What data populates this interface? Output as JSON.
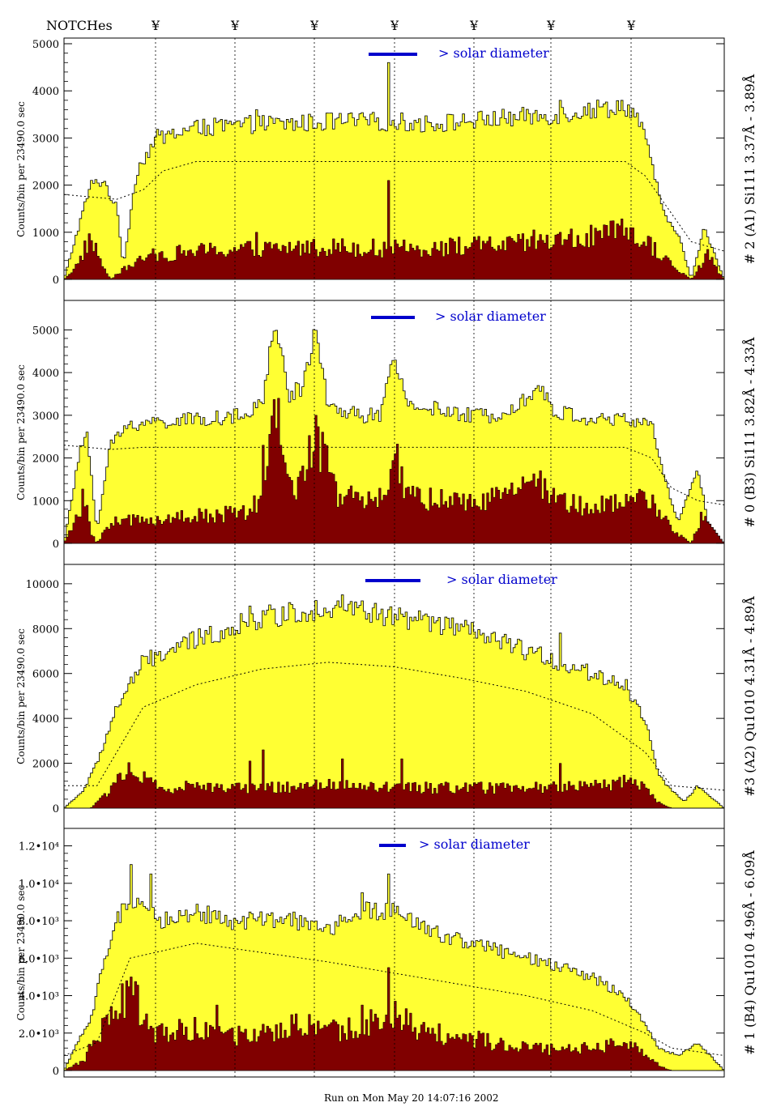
{
  "header": {
    "notches_label": "NOTCHes",
    "notch_symbol": "¥"
  },
  "footer": {
    "run_text": "Run on Mon May 20 14:07:16 2002"
  },
  "colors": {
    "total": "#ffff33",
    "line": "#800000",
    "frame": "#000000",
    "solar_bar": "#0000cc"
  },
  "chart_data": [
    {
      "type": "area",
      "panel_label": "# 2 (A1) Si111  3.37Å - 3.89Å",
      "ylabel": "Counts/bin per  23490.0 sec",
      "ylim": [
        0,
        5000
      ],
      "yticks": [
        0,
        1000,
        2000,
        3000,
        4000,
        5000
      ],
      "ytick_labels": [
        "0",
        "1000",
        "2000",
        "3000",
        "4000",
        "5000"
      ],
      "solar_label": "> solar diameter",
      "total_profile": [
        [
          0,
          0
        ],
        [
          0.04,
          2000
        ],
        [
          0.06,
          2100
        ],
        [
          0.08,
          1500
        ],
        [
          0.09,
          300
        ],
        [
          0.11,
          2300
        ],
        [
          0.14,
          3000
        ],
        [
          0.2,
          3200
        ],
        [
          0.25,
          3250
        ],
        [
          0.3,
          3300
        ],
        [
          0.35,
          3300
        ],
        [
          0.4,
          3350
        ],
        [
          0.45,
          3350
        ],
        [
          0.5,
          3350
        ],
        [
          0.55,
          3300
        ],
        [
          0.6,
          3350
        ],
        [
          0.65,
          3400
        ],
        [
          0.7,
          3450
        ],
        [
          0.75,
          3500
        ],
        [
          0.8,
          3600
        ],
        [
          0.85,
          3700
        ],
        [
          0.87,
          3400
        ],
        [
          0.89,
          2500
        ],
        [
          0.91,
          1300
        ],
        [
          0.93,
          1000
        ],
        [
          0.95,
          0
        ],
        [
          0.97,
          1100
        ],
        [
          1,
          0
        ]
      ],
      "line_profile": [
        [
          0,
          0
        ],
        [
          0.02,
          300
        ],
        [
          0.04,
          900
        ],
        [
          0.055,
          400
        ],
        [
          0.07,
          0
        ],
        [
          0.08,
          100
        ],
        [
          0.1,
          300
        ],
        [
          0.13,
          500
        ],
        [
          0.2,
          600
        ],
        [
          0.3,
          650
        ],
        [
          0.4,
          700
        ],
        [
          0.5,
          650
        ],
        [
          0.6,
          700
        ],
        [
          0.7,
          750
        ],
        [
          0.8,
          900
        ],
        [
          0.85,
          1000
        ],
        [
          0.88,
          800
        ],
        [
          0.9,
          600
        ],
        [
          0.92,
          300
        ],
        [
          0.95,
          0
        ],
        [
          0.975,
          500
        ],
        [
          1,
          0
        ]
      ],
      "total_spikes": [
        [
          0.49,
          4600
        ],
        [
          0.29,
          3600
        ],
        [
          0.75,
          3800
        ],
        [
          0.21,
          3400
        ]
      ],
      "line_spikes": [
        [
          0.49,
          2100
        ],
        [
          0.29,
          1000
        ],
        [
          0.71,
          1050
        ],
        [
          0.75,
          1000
        ]
      ],
      "model_curve": [
        [
          0,
          1800
        ],
        [
          0.08,
          1700
        ],
        [
          0.12,
          1900
        ],
        [
          0.15,
          2300
        ],
        [
          0.2,
          2500
        ],
        [
          0.5,
          2500
        ],
        [
          0.85,
          2500
        ],
        [
          0.88,
          2200
        ],
        [
          0.91,
          1600
        ],
        [
          0.95,
          800
        ],
        [
          1,
          600
        ]
      ]
    },
    {
      "type": "area",
      "panel_label": "# 0 (B3) Si111  3.82Å - 4.33Å",
      "ylabel": "Counts/bin per  23490.0 sec",
      "ylim": [
        0,
        5500
      ],
      "yticks": [
        0,
        1000,
        2000,
        3000,
        4000,
        5000
      ],
      "ytick_labels": [
        "0",
        "1000",
        "2000",
        "3000",
        "4000",
        "5000"
      ],
      "solar_label": "> solar diameter",
      "total_profile": [
        [
          0,
          0
        ],
        [
          0.025,
          2200
        ],
        [
          0.035,
          2600
        ],
        [
          0.05,
          300
        ],
        [
          0.07,
          2300
        ],
        [
          0.1,
          2800
        ],
        [
          0.2,
          2900
        ],
        [
          0.28,
          3000
        ],
        [
          0.3,
          3300
        ],
        [
          0.32,
          5200
        ],
        [
          0.34,
          3500
        ],
        [
          0.36,
          3600
        ],
        [
          0.38,
          5000
        ],
        [
          0.4,
          3200
        ],
        [
          0.45,
          3000
        ],
        [
          0.48,
          3000
        ],
        [
          0.5,
          4300
        ],
        [
          0.52,
          3300
        ],
        [
          0.6,
          3000
        ],
        [
          0.65,
          3000
        ],
        [
          0.7,
          3400
        ],
        [
          0.72,
          3700
        ],
        [
          0.74,
          3100
        ],
        [
          0.8,
          2900
        ],
        [
          0.85,
          2900
        ],
        [
          0.89,
          2800
        ],
        [
          0.91,
          1500
        ],
        [
          0.93,
          500
        ],
        [
          0.96,
          1800
        ],
        [
          0.975,
          500
        ],
        [
          1,
          0
        ]
      ],
      "line_profile": [
        [
          0,
          0
        ],
        [
          0.02,
          600
        ],
        [
          0.03,
          1100
        ],
        [
          0.04,
          300
        ],
        [
          0.05,
          0
        ],
        [
          0.07,
          500
        ],
        [
          0.2,
          650
        ],
        [
          0.28,
          700
        ],
        [
          0.3,
          1100
        ],
        [
          0.32,
          3000
        ],
        [
          0.34,
          1500
        ],
        [
          0.36,
          1400
        ],
        [
          0.38,
          2800
        ],
        [
          0.41,
          1200
        ],
        [
          0.45,
          1000
        ],
        [
          0.48,
          1000
        ],
        [
          0.5,
          2000
        ],
        [
          0.52,
          1200
        ],
        [
          0.6,
          900
        ],
        [
          0.68,
          1100
        ],
        [
          0.72,
          1400
        ],
        [
          0.75,
          1000
        ],
        [
          0.8,
          850
        ],
        [
          0.85,
          900
        ],
        [
          0.89,
          1100
        ],
        [
          0.92,
          300
        ],
        [
          0.95,
          0
        ],
        [
          0.97,
          800
        ],
        [
          1,
          0
        ]
      ],
      "total_spikes": [],
      "line_spikes": [
        [
          0.3,
          2300
        ],
        [
          0.5,
          2100
        ]
      ],
      "model_curve": [
        [
          0,
          2300
        ],
        [
          0.07,
          2200
        ],
        [
          0.12,
          2250
        ],
        [
          0.5,
          2250
        ],
        [
          0.85,
          2250
        ],
        [
          0.89,
          2000
        ],
        [
          0.92,
          1300
        ],
        [
          0.96,
          1000
        ],
        [
          1,
          900
        ]
      ]
    },
    {
      "type": "area",
      "panel_label": "#3 (A2) Qu1010  4.31Å - 4.89Å",
      "ylabel": "Counts/bin per  23490.0 sec",
      "ylim": [
        0,
        10500
      ],
      "yticks": [
        0,
        2000,
        4000,
        6000,
        8000,
        10000
      ],
      "ytick_labels": [
        "0",
        "2000",
        "4000",
        "6000",
        "8000",
        "10000"
      ],
      "solar_label": "> solar diameter",
      "total_profile": [
        [
          0,
          0
        ],
        [
          0.03,
          800
        ],
        [
          0.05,
          2000
        ],
        [
          0.08,
          4500
        ],
        [
          0.12,
          6500
        ],
        [
          0.2,
          7500
        ],
        [
          0.25,
          8000
        ],
        [
          0.3,
          8500
        ],
        [
          0.35,
          8700
        ],
        [
          0.4,
          9000
        ],
        [
          0.45,
          8800
        ],
        [
          0.5,
          8500
        ],
        [
          0.55,
          8300
        ],
        [
          0.6,
          8000
        ],
        [
          0.65,
          7500
        ],
        [
          0.7,
          7000
        ],
        [
          0.75,
          6500
        ],
        [
          0.8,
          6000
        ],
        [
          0.85,
          5500
        ],
        [
          0.88,
          4000
        ],
        [
          0.9,
          1500
        ],
        [
          0.92,
          800
        ],
        [
          0.94,
          300
        ],
        [
          0.96,
          1000
        ],
        [
          1,
          0
        ]
      ],
      "line_profile": [
        [
          0,
          0
        ],
        [
          0.04,
          0
        ],
        [
          0.06,
          500
        ],
        [
          0.08,
          1300
        ],
        [
          0.1,
          1800
        ],
        [
          0.12,
          1300
        ],
        [
          0.15,
          800
        ],
        [
          0.2,
          1000
        ],
        [
          0.3,
          900
        ],
        [
          0.4,
          1000
        ],
        [
          0.5,
          900
        ],
        [
          0.6,
          900
        ],
        [
          0.7,
          900
        ],
        [
          0.8,
          1000
        ],
        [
          0.85,
          1200
        ],
        [
          0.88,
          900
        ],
        [
          0.9,
          300
        ],
        [
          0.92,
          0
        ],
        [
          1,
          0
        ]
      ],
      "total_spikes": [
        [
          0.28,
          9000
        ],
        [
          0.42,
          9500
        ],
        [
          0.75,
          7800
        ],
        [
          0.3,
          8800
        ]
      ],
      "line_spikes": [
        [
          0.28,
          2100
        ],
        [
          0.3,
          2600
        ],
        [
          0.42,
          2200
        ],
        [
          0.51,
          2200
        ],
        [
          0.75,
          2000
        ]
      ],
      "model_curve": [
        [
          0,
          1000
        ],
        [
          0.05,
          1000
        ],
        [
          0.08,
          2500
        ],
        [
          0.12,
          4500
        ],
        [
          0.2,
          5500
        ],
        [
          0.3,
          6200
        ],
        [
          0.4,
          6500
        ],
        [
          0.5,
          6300
        ],
        [
          0.6,
          5800
        ],
        [
          0.7,
          5200
        ],
        [
          0.8,
          4200
        ],
        [
          0.88,
          2500
        ],
        [
          0.92,
          1000
        ],
        [
          1,
          800
        ]
      ]
    },
    {
      "type": "area",
      "panel_label": "# 1 (B4) Qu1010 4.96Å - 6.09Å",
      "ylabel": "Counts/bin per  23490.0 sec",
      "ylim": [
        0,
        12500
      ],
      "yticks": [
        0,
        2000,
        4000,
        6000,
        8000,
        10000,
        12000
      ],
      "ytick_labels": [
        "0",
        "2.0•10³",
        "4.0•10³",
        "6.0•10³",
        "8.0•10³",
        "1.0•10⁴",
        "1.2•10⁴"
      ],
      "solar_label": "> solar diameter",
      "total_profile": [
        [
          0,
          0
        ],
        [
          0.02,
          1500
        ],
        [
          0.04,
          2500
        ],
        [
          0.06,
          6000
        ],
        [
          0.08,
          8000
        ],
        [
          0.1,
          9000
        ],
        [
          0.12,
          8500
        ],
        [
          0.15,
          8000
        ],
        [
          0.2,
          8500
        ],
        [
          0.25,
          8000
        ],
        [
          0.3,
          8000
        ],
        [
          0.35,
          8000
        ],
        [
          0.4,
          7500
        ],
        [
          0.45,
          8500
        ],
        [
          0.5,
          8500
        ],
        [
          0.55,
          7500
        ],
        [
          0.6,
          7000
        ],
        [
          0.65,
          6500
        ],
        [
          0.7,
          6000
        ],
        [
          0.75,
          5500
        ],
        [
          0.8,
          5000
        ],
        [
          0.85,
          4000
        ],
        [
          0.88,
          2500
        ],
        [
          0.9,
          1200
        ],
        [
          0.93,
          800
        ],
        [
          0.96,
          1500
        ],
        [
          1,
          0
        ]
      ],
      "line_profile": [
        [
          0,
          0
        ],
        [
          0.03,
          500
        ],
        [
          0.05,
          2000
        ],
        [
          0.08,
          3000
        ],
        [
          0.1,
          4500
        ],
        [
          0.12,
          3000
        ],
        [
          0.14,
          2000
        ],
        [
          0.2,
          2200
        ],
        [
          0.25,
          1800
        ],
        [
          0.3,
          2000
        ],
        [
          0.35,
          2500
        ],
        [
          0.4,
          2000
        ],
        [
          0.45,
          2500
        ],
        [
          0.5,
          3000
        ],
        [
          0.55,
          2000
        ],
        [
          0.6,
          1800
        ],
        [
          0.65,
          1500
        ],
        [
          0.7,
          1200
        ],
        [
          0.75,
          1100
        ],
        [
          0.8,
          1300
        ],
        [
          0.85,
          1500
        ],
        [
          0.88,
          800
        ],
        [
          0.9,
          300
        ],
        [
          0.92,
          0
        ],
        [
          1,
          0
        ]
      ],
      "total_spikes": [
        [
          0.1,
          11000
        ],
        [
          0.49,
          10500
        ],
        [
          0.45,
          9500
        ],
        [
          0.13,
          10500
        ]
      ],
      "line_spikes": [
        [
          0.1,
          5000
        ],
        [
          0.49,
          5500
        ],
        [
          0.23,
          3500
        ],
        [
          0.37,
          3000
        ],
        [
          0.45,
          3500
        ]
      ],
      "model_curve": [
        [
          0,
          800
        ],
        [
          0.05,
          1500
        ],
        [
          0.1,
          6000
        ],
        [
          0.2,
          6800
        ],
        [
          0.3,
          6300
        ],
        [
          0.4,
          5800
        ],
        [
          0.5,
          5200
        ],
        [
          0.6,
          4600
        ],
        [
          0.7,
          4000
        ],
        [
          0.8,
          3200
        ],
        [
          0.88,
          2000
        ],
        [
          0.92,
          1200
        ],
        [
          1,
          800
        ]
      ]
    }
  ]
}
